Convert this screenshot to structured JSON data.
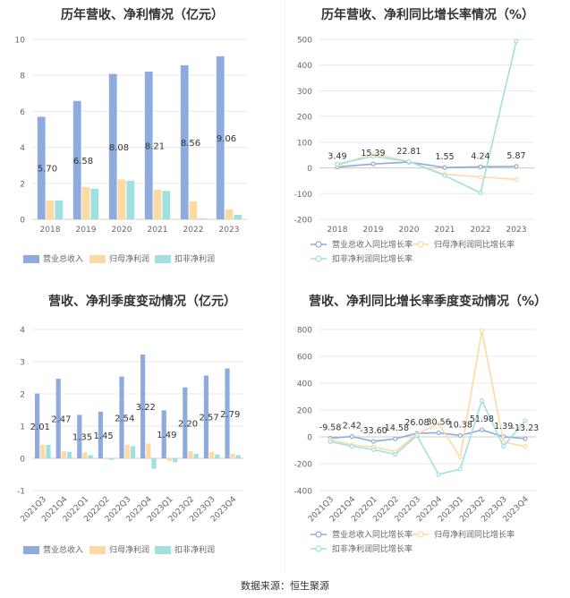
{
  "footer": {
    "source": "数据来源：恒生聚源"
  },
  "colors": {
    "revenue": "#8faadc",
    "net_profit": "#fdd9a3",
    "deducted_profit": "#9fe0e1",
    "grid": "#e8e8e8",
    "axis_text": "#666666"
  },
  "chart_data": [
    {
      "id": "annual-bar",
      "type": "bar",
      "title": "历年营收、净利情况（亿元）",
      "categories": [
        "2018",
        "2019",
        "2020",
        "2021",
        "2022",
        "2023"
      ],
      "ylim": [
        0,
        10
      ],
      "yticks": [
        0,
        2,
        4,
        6,
        8,
        10
      ],
      "series": [
        {
          "name": "营业总收入",
          "values": [
            5.7,
            6.58,
            8.08,
            8.21,
            8.56,
            9.06
          ],
          "labels": [
            "5.70",
            "6.58",
            "8.08",
            "8.21",
            "8.56",
            "9.06"
          ]
        },
        {
          "name": "归母净利润",
          "values": [
            1.05,
            1.8,
            2.22,
            1.65,
            1.0,
            0.55
          ]
        },
        {
          "name": "扣非净利润",
          "values": [
            1.05,
            1.7,
            2.15,
            1.58,
            0.05,
            0.25
          ]
        }
      ],
      "legend": "bottom"
    },
    {
      "id": "annual-line",
      "type": "line",
      "title": "历年营收、净利同比增长率情况（%）",
      "categories": [
        "2018",
        "2019",
        "2020",
        "2021",
        "2022",
        "2023"
      ],
      "ylim": [
        -200,
        500
      ],
      "yticks": [
        -200,
        -100,
        0,
        100,
        200,
        300,
        400,
        500
      ],
      "series": [
        {
          "name": "营业总收入同比增长率",
          "values": [
            3.49,
            15.39,
            22.81,
            1.55,
            4.24,
            5.87
          ],
          "labels": [
            "3.49",
            "15.39",
            "22.81",
            "1.55",
            "4.24",
            "5.87"
          ]
        },
        {
          "name": "归母净利润同比增长率",
          "values": [
            10,
            55,
            25,
            -25,
            -35,
            -45
          ]
        },
        {
          "name": "扣非净利润同比增长率",
          "values": [
            15,
            45,
            25,
            -30,
            -97,
            493
          ]
        }
      ],
      "legend": "bottom"
    },
    {
      "id": "quarter-bar",
      "type": "bar",
      "title": "营收、净利季度变动情况（亿元）",
      "categories": [
        "2021Q3",
        "2021Q4",
        "2022Q1",
        "2022Q2",
        "2022Q3",
        "2022Q4",
        "2023Q1",
        "2023Q2",
        "2023Q3",
        "2023Q4"
      ],
      "ylim": [
        -1,
        4
      ],
      "yticks": [
        -1,
        0,
        1,
        2,
        3,
        4
      ],
      "series": [
        {
          "name": "营业总收入",
          "values": [
            2.01,
            2.47,
            1.35,
            1.45,
            2.54,
            3.22,
            1.49,
            2.2,
            2.57,
            2.79
          ],
          "labels": [
            "2.01",
            "2.47",
            "1.35",
            "1.45",
            "2.54",
            "3.22",
            "1.49",
            "2.20",
            "2.57",
            "2.79"
          ]
        },
        {
          "name": "归母净利润",
          "values": [
            0.42,
            0.22,
            0.18,
            -0.03,
            0.42,
            0.46,
            -0.08,
            0.22,
            0.2,
            0.15
          ]
        },
        {
          "name": "扣非净利润",
          "values": [
            0.42,
            0.2,
            0.1,
            -0.05,
            0.38,
            -0.32,
            -0.12,
            0.14,
            0.12,
            0.1
          ]
        }
      ],
      "legend": "bottom"
    },
    {
      "id": "quarter-line",
      "type": "line",
      "title": "营收、净利同比增长率季度变动情况（%）",
      "categories": [
        "2021Q3",
        "2021Q4",
        "2022Q1",
        "2022Q2",
        "2022Q3",
        "2022Q4",
        "2023Q1",
        "2023Q2",
        "2023Q3",
        "2023Q4"
      ],
      "ylim": [
        -400,
        800
      ],
      "yticks": [
        -400,
        -200,
        0,
        200,
        400,
        600,
        800
      ],
      "series": [
        {
          "name": "营业总收入同比增长率",
          "values": [
            -9.58,
            2.42,
            -33.6,
            -14.58,
            26.08,
            30.56,
            10.38,
            51.98,
            1.39,
            -13.23
          ],
          "labels": [
            "-9.58",
            "2.42",
            "-33.60",
            "-14.58",
            "26.08",
            "30.56",
            "10.38",
            "51.98",
            "1.39",
            "-13.23"
          ]
        },
        {
          "name": "归母净利润同比增长率",
          "values": [
            -20,
            -60,
            -75,
            -110,
            20,
            100,
            -150,
            790,
            -40,
            -70
          ]
        },
        {
          "name": "扣非净利润同比增长率",
          "values": [
            -35,
            -70,
            -95,
            -130,
            10,
            -280,
            -240,
            270,
            -70,
            120
          ]
        }
      ],
      "legend": "bottom"
    }
  ]
}
